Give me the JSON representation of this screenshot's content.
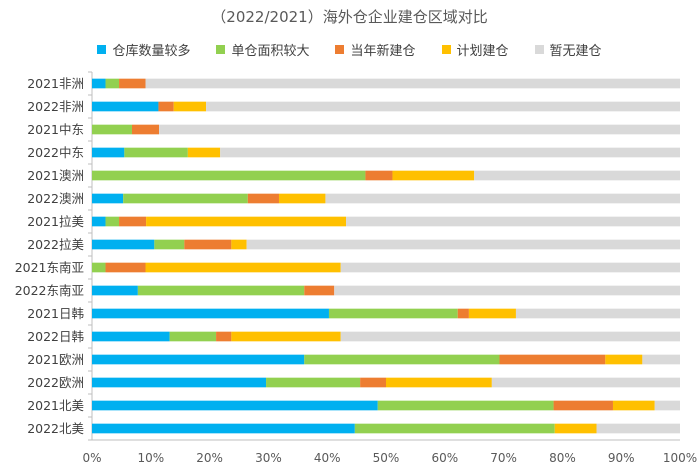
{
  "chart_data": {
    "type": "bar",
    "orientation": "horizontal",
    "stacked": "percent",
    "title": "（2022/2021）海外仓企业建仓区域对比",
    "xlabel": "",
    "ylabel": "",
    "xlim": [
      0,
      100
    ],
    "x_ticks": [
      "0%",
      "10%",
      "20%",
      "30%",
      "40%",
      "50%",
      "60%",
      "70%",
      "80%",
      "90%",
      "100%"
    ],
    "legend_position": "top",
    "grid": false,
    "categories": [
      "2021非洲",
      "2022非洲",
      "2021中东",
      "2022中东",
      "2021澳洲",
      "2022澳洲",
      "2021拉美",
      "2022拉美",
      "2021东南亚",
      "2022东南亚",
      "2021日韩",
      "2022日韩",
      "2021欧洲",
      "2022欧洲",
      "2021北美",
      "2022北美"
    ],
    "series": [
      {
        "name": "仓库数量较多",
        "color": "#00B0F0",
        "values": [
          2.3,
          11.3,
          0,
          5.5,
          0,
          5.3,
          2.3,
          10.6,
          0,
          7.8,
          40.3,
          13.2,
          36.1,
          29.6,
          48.6,
          44.7
        ]
      },
      {
        "name": "单仓面积较大",
        "color": "#92D050",
        "values": [
          2.3,
          0,
          6.8,
          10.8,
          46.5,
          21.2,
          2.3,
          5.1,
          2.3,
          28.3,
          21.9,
          7.9,
          33.2,
          16.0,
          29.9,
          34.0
        ]
      },
      {
        "name": "当年新建仓",
        "color": "#ED7D31",
        "values": [
          4.5,
          2.6,
          4.6,
          0,
          4.6,
          5.3,
          4.6,
          8.0,
          6.8,
          5.1,
          1.9,
          2.6,
          18.0,
          4.4,
          10.1,
          0
        ]
      },
      {
        "name": "计划建仓",
        "color": "#FFC000",
        "values": [
          0,
          5.5,
          0,
          5.5,
          13.9,
          7.9,
          34.0,
          2.6,
          33.2,
          0,
          8.0,
          18.6,
          6.3,
          18.0,
          7.1,
          7.1
        ]
      },
      {
        "name": "暂无建仓",
        "color": "#D9D9D9",
        "values": [
          90.9,
          80.6,
          88.6,
          78.2,
          35.0,
          60.3,
          56.8,
          73.7,
          57.7,
          58.8,
          27.9,
          57.7,
          6.4,
          32.0,
          4.3,
          14.2
        ]
      }
    ]
  }
}
